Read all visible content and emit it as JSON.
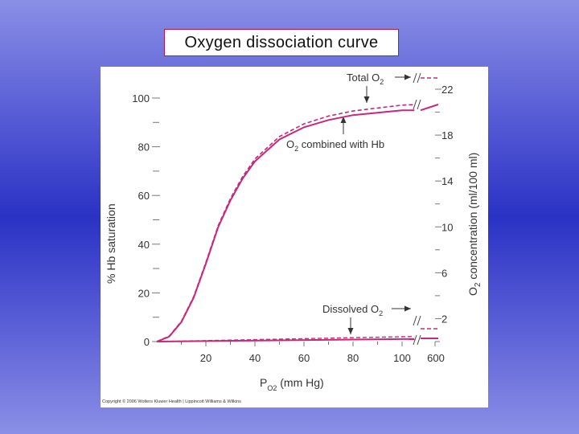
{
  "title": "Oxygen dissociation curve",
  "chart_data": {
    "type": "line",
    "ylabel_left": "% Hb saturation",
    "ylabel_right_main": "O",
    "ylabel_right_sub": "2",
    "ylabel_right_rest": " concentration (ml/100 ml)",
    "xlabel_main": "P",
    "xlabel_sub": "O2",
    "xlabel_rest": " (mm Hg)",
    "x_ticks": [
      "20",
      "40",
      "60",
      "80",
      "100",
      "600"
    ],
    "y_ticks_left": [
      "0",
      "20",
      "40",
      "60",
      "80",
      "100"
    ],
    "y_ticks_right": [
      "2",
      "6",
      "10",
      "14",
      "18",
      "22"
    ],
    "xlim": [
      0,
      110
    ],
    "ylim_left": [
      0,
      100
    ],
    "ylim_right": [
      0,
      22
    ],
    "series": [
      {
        "name": "O2 combined with Hb",
        "style": "solid",
        "x": [
          0,
          5,
          10,
          15,
          20,
          25,
          30,
          35,
          40,
          50,
          60,
          70,
          80,
          90,
          100,
          105
        ],
        "y": [
          0,
          2,
          8,
          18,
          32,
          47,
          58,
          67,
          74,
          83,
          88,
          91,
          93,
          94,
          95,
          95
        ]
      },
      {
        "name": "Total O2",
        "style": "dashed",
        "x": [
          0,
          5,
          10,
          15,
          20,
          25,
          30,
          35,
          40,
          50,
          60,
          70,
          80,
          90,
          100,
          105
        ],
        "y": [
          0,
          2.2,
          8.3,
          18.4,
          32.5,
          47.6,
          58.7,
          67.8,
          75,
          84.2,
          89.4,
          92.6,
          94.7,
          95.9,
          97.1,
          97.3
        ]
      },
      {
        "name": "Dissolved O2",
        "style": "solid",
        "x": [
          0,
          105
        ],
        "y": [
          0,
          1.1
        ]
      }
    ],
    "annotations": [
      {
        "main": "Total O",
        "sub": "2"
      },
      {
        "main": "O",
        "sub": "2",
        "rest": " combined with Hb"
      },
      {
        "main": "Dissolved O",
        "sub": "2"
      }
    ],
    "copyright": "Copyright © 2006 Wolters Kluwer Health | Lippincott Williams & Wilkins",
    "line_color": "#c8287a",
    "background": "#ffffff"
  }
}
